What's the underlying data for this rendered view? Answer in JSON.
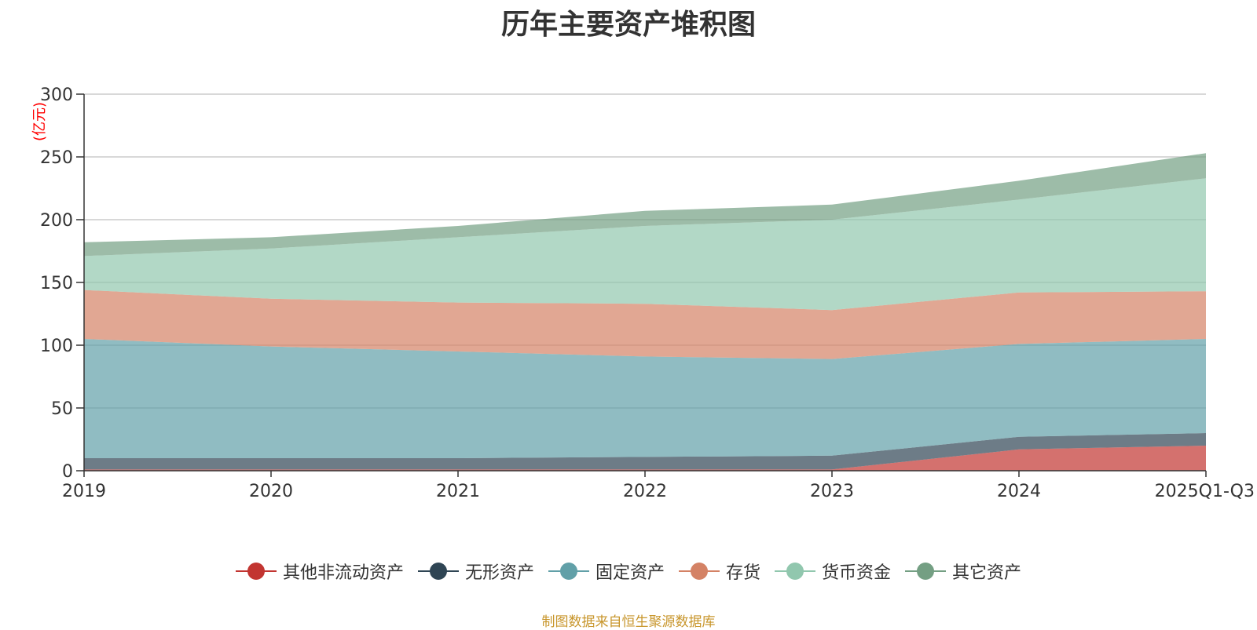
{
  "chart_data": {
    "type": "area",
    "stacked": true,
    "title": "历年主要资产堆积图",
    "unit_label": "(亿元)",
    "categories": [
      "2019",
      "2020",
      "2021",
      "2022",
      "2023",
      "2024",
      "2025Q1-Q3"
    ],
    "ylim": [
      0,
      300
    ],
    "yticks": [
      0,
      50,
      100,
      150,
      200,
      250,
      300
    ],
    "grid": true,
    "legend_position": "bottom-center",
    "series": [
      {
        "name": "其他非流动资产",
        "color": "#c23531",
        "values": [
          1,
          1,
          1,
          1,
          1,
          17,
          20
        ]
      },
      {
        "name": "无形资产",
        "color": "#2f4554",
        "values": [
          9,
          9,
          9,
          10,
          11,
          10,
          10
        ]
      },
      {
        "name": "固定资产",
        "color": "#61a0a8",
        "values": [
          95,
          89,
          85,
          80,
          77,
          74,
          75
        ]
      },
      {
        "name": "存货",
        "color": "#d48265",
        "values": [
          39,
          38,
          39,
          42,
          39,
          41,
          38
        ]
      },
      {
        "name": "货币资金",
        "color": "#91c7ae",
        "values": [
          27,
          40,
          52,
          62,
          72,
          74,
          90
        ]
      },
      {
        "name": "其它资产",
        "color": "#749f83",
        "values": [
          11,
          9,
          9,
          12,
          12,
          15,
          20
        ]
      }
    ]
  },
  "source_text": "制图数据来自恒生聚源数据库",
  "colors": {
    "title": "#333333",
    "unit_label": "#ff0000",
    "source": "#c8962c",
    "axis": "#333333",
    "grid": "#cccccc"
  }
}
